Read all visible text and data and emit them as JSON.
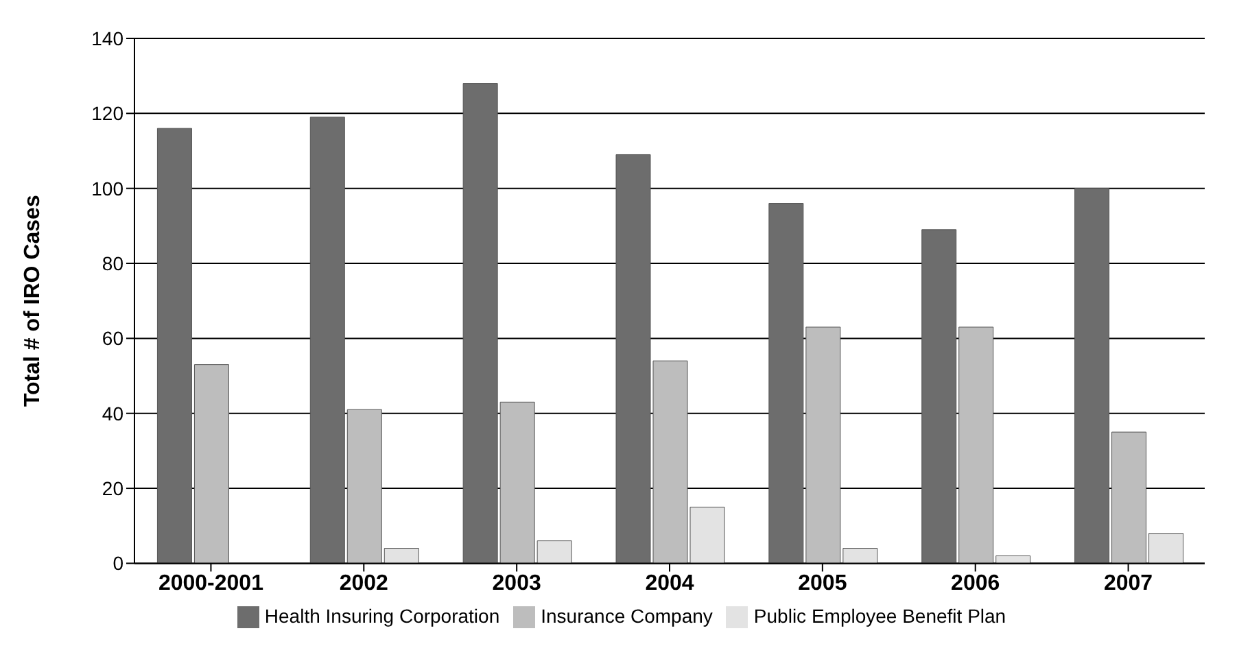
{
  "chart_data": {
    "type": "bar",
    "ylabel": "Total # of IRO Cases",
    "categories": [
      "2000-2001",
      "2002",
      "2003",
      "2004",
      "2005",
      "2006",
      "2007"
    ],
    "series": [
      {
        "name": "Health Insuring Corporation",
        "color": "#6d6d6d",
        "values": [
          116,
          119,
          128,
          109,
          96,
          89,
          100
        ]
      },
      {
        "name": "Insurance Company",
        "color": "#bdbdbd",
        "values": [
          53,
          41,
          43,
          54,
          63,
          63,
          35
        ]
      },
      {
        "name": "Public Employee Benefit Plan",
        "color": "#e3e3e3",
        "values": [
          null,
          4,
          6,
          15,
          4,
          2,
          8
        ]
      }
    ],
    "ylim": [
      0,
      140
    ],
    "yticks": [
      0,
      20,
      40,
      60,
      80,
      100,
      120,
      140
    ],
    "grid": "y",
    "legend": "bottom"
  }
}
